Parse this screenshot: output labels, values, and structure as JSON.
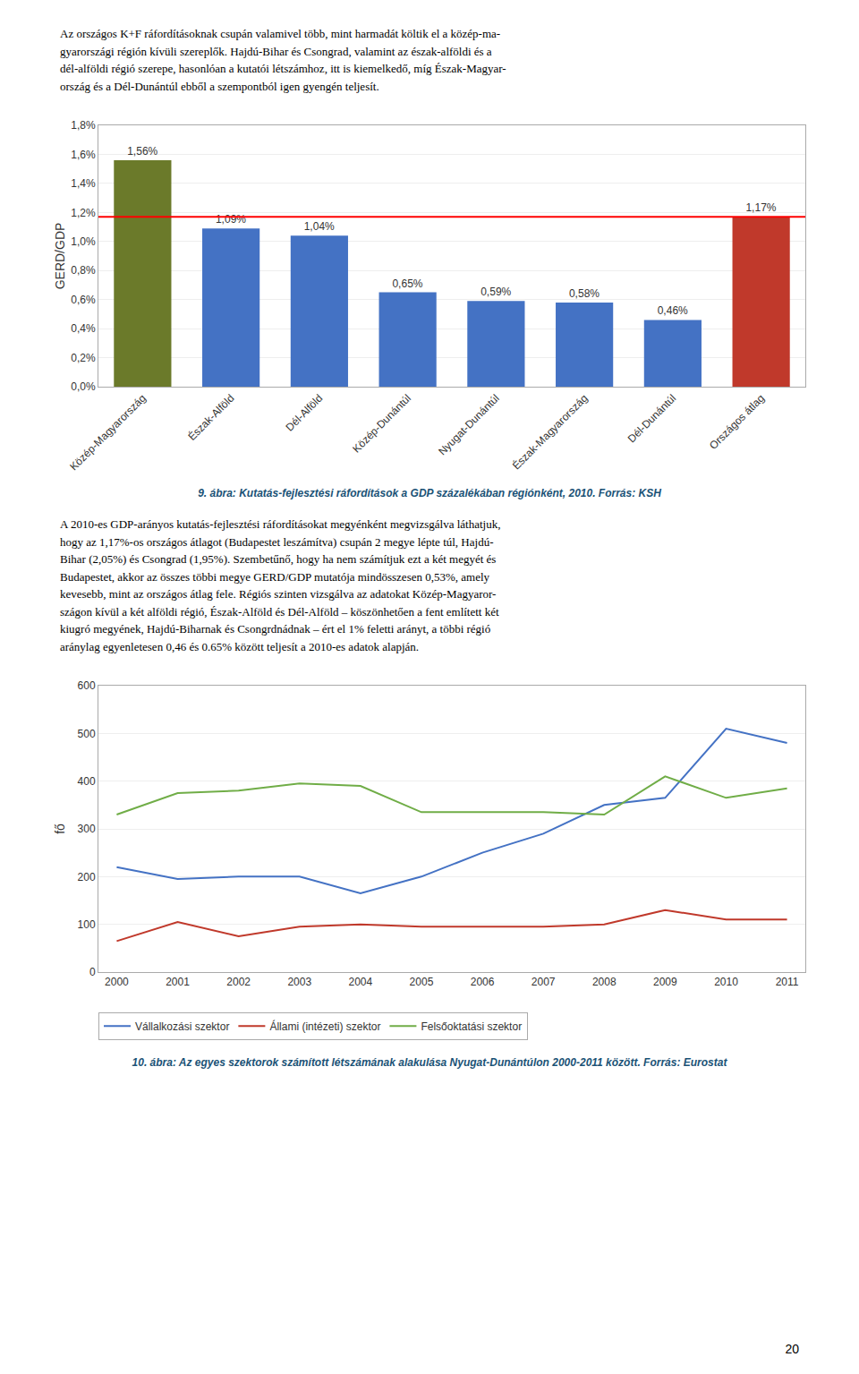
{
  "page_text_top": "Az országos K+F ráfordításoknak csupán valamivel több, mint harmadát költik el a közép-ma-\ngyarországi régión kívüli szereplők. Hajdú-Bihar és Csongrad, valamint az észak-alföldi és a\ndél-alföldi régió szerepe, hasonlóan a kutatói létszámhoz, itt is kiemelkedő, míg Észak-Magyar-\nország és a Dél-Dunántúl ebből a szempontból igen gyengén teljesít.",
  "page_text_mid": "A 2010-es GDP-arányos kutatás-fejlesztési ráfordításokat megyénként megvizsgálva láthatjuk,\nhogy az 1,17%-os országos átlagot (Budapestet leszámítva) csupán 2 megye lépte túl, Hajdú-\nBihar (2,05%) és Csongrad (1,95%). Szembetűnő, hogy ha nem számítjuk ezt a két megyét és\nBudapestet, akkor az összes többi megye GERD/GDP mutatója mindösszesen 0,53%, amely\nkevesebb, mint az országos átlag fele. Régiós szinten vizsgálva az adatokat Közép-Magyaror-\nszágon kívül a két alföldi régió, Észak-Alföld és Dél-Alföld – köszönhetően a fent említett két\nkiugró megyének, Hajdú-Biharnak és Csongrdnádnak – ért el 1% feletti arányt, a többi régió\naránylag egyenletesen 0,46 és 0.65% között teljesít a 2010-es adatok alapján.",
  "page_number": "20",
  "chart_data": [
    {
      "type": "bar",
      "title": "9. ábra: Kutatás-fejlesztési ráfordítások a GDP százalékában régiónként, 2010. Forrás: KSH",
      "ylabel": "GERD/GDP",
      "categories": [
        "Közép-Magyarország",
        "Észak-Alföld",
        "Dél-Alföld",
        "Közép-Dunántúl",
        "Nyugat-Dunántúl",
        "Észak-Magyarország",
        "Dél-Dunántúl",
        "Országos átlag"
      ],
      "values": [
        1.56,
        1.09,
        1.04,
        0.65,
        0.59,
        0.58,
        0.46,
        1.17
      ],
      "value_labels": [
        "1,56%",
        "1,09%",
        "1,04%",
        "0,65%",
        "0,59%",
        "0,58%",
        "0,46%",
        "1,17%"
      ],
      "data_labels": true,
      "colors": [
        "#6b7a2a",
        "#4472c4",
        "#4472c4",
        "#4472c4",
        "#4472c4",
        "#4472c4",
        "#4472c4",
        "#c0392b"
      ],
      "reference_line": {
        "value": 1.17,
        "color": "red"
      },
      "ylim": [
        0,
        1.8
      ],
      "yticks": [
        {
          "value": 0.0,
          "label": "0,0%"
        },
        {
          "value": 0.2,
          "label": "0,2%"
        },
        {
          "value": 0.4,
          "label": "0,4%"
        },
        {
          "value": 0.6,
          "label": "0,6%"
        },
        {
          "value": 0.8,
          "label": "0,8%"
        },
        {
          "value": 1.0,
          "label": "1,0%"
        },
        {
          "value": 1.2,
          "label": "1,2%"
        },
        {
          "value": 1.4,
          "label": "1,4%"
        },
        {
          "value": 1.6,
          "label": "1,6%"
        },
        {
          "value": 1.8,
          "label": "1,8%"
        }
      ],
      "grid": true
    },
    {
      "type": "line",
      "title": "10. ábra: Az egyes szektorok számított létszámának alakulása Nyugat-Dunántúlon 2000-2011 között. Forrás: Eurostat",
      "ylabel": "fő",
      "x": [
        2000,
        2001,
        2002,
        2003,
        2004,
        2005,
        2006,
        2007,
        2008,
        2009,
        2010,
        2011
      ],
      "series": [
        {
          "name": "Vállalkozási szektor",
          "color": "#4472c4",
          "values": [
            220,
            195,
            200,
            200,
            165,
            200,
            250,
            290,
            350,
            365,
            510,
            480
          ]
        },
        {
          "name": "Állami (intézeti) szektor",
          "color": "#c0392b",
          "values": [
            65,
            105,
            75,
            95,
            100,
            95,
            95,
            95,
            100,
            130,
            110,
            110
          ]
        },
        {
          "name": "Felsőoktatási szektor",
          "color": "#70ad47",
          "values": [
            330,
            375,
            380,
            395,
            390,
            335,
            335,
            335,
            330,
            410,
            365,
            385
          ]
        }
      ],
      "xlim": [
        1999.7,
        2011.3
      ],
      "xticks": [
        2000,
        2001,
        2002,
        2003,
        2004,
        2005,
        2006,
        2007,
        2008,
        2009,
        2010,
        2011
      ],
      "ylim": [
        0,
        600
      ],
      "yticks": [
        0,
        100,
        200,
        300,
        400,
        500,
        600
      ],
      "grid": true,
      "legend": "bottom"
    }
  ]
}
